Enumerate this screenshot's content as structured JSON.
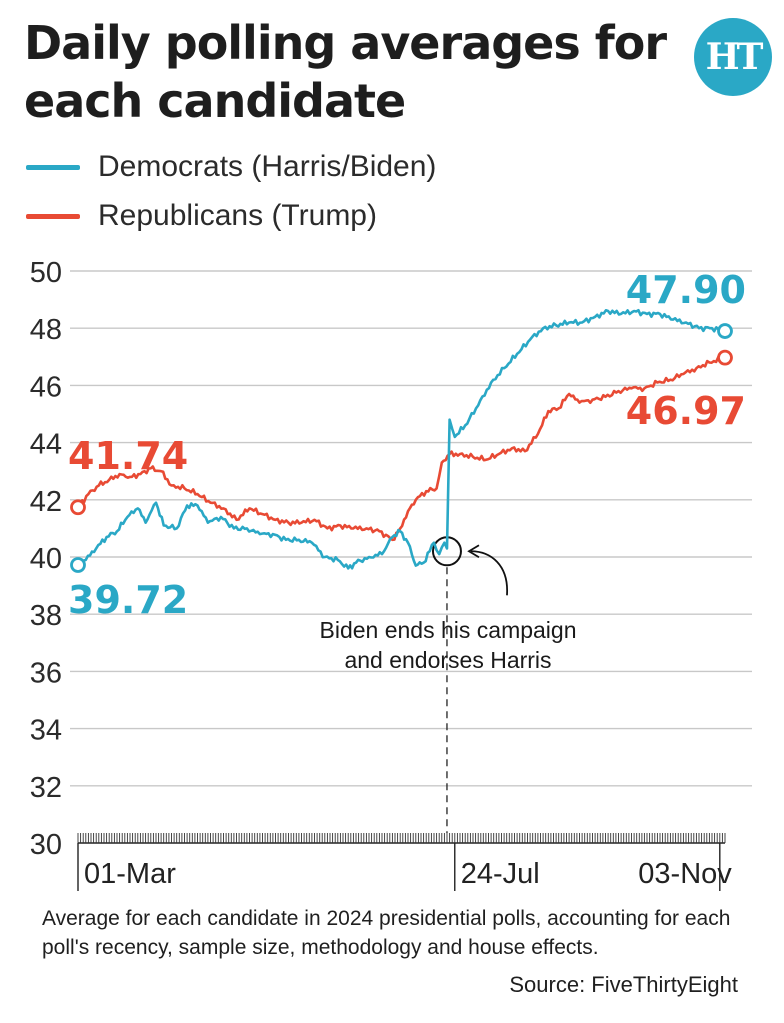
{
  "header": {
    "title": "Daily polling averages for each candidate",
    "logo_text": "HT",
    "logo_color": "#2aa8c6"
  },
  "footnote": "Average for each candidate in 2024 presidential polls, accounting for each poll's recency, sample size, methodology and house effects.",
  "source": "Source: FiveThirtyEight",
  "chart_data": {
    "type": "line",
    "title": "Daily polling averages for each candidate",
    "xlabel": "",
    "ylabel": "",
    "ylim": [
      30,
      50
    ],
    "yticks": [
      30,
      32,
      34,
      36,
      38,
      40,
      42,
      44,
      46,
      48,
      50
    ],
    "xlim": [
      "2024-03-01",
      "2024-11-05"
    ],
    "xtick_labels": [
      {
        "label": "01-Mar",
        "date": "2024-03-01"
      },
      {
        "label": "24-Jul",
        "date": "2024-07-24"
      },
      {
        "label": "03-Nov",
        "date": "2024-11-03"
      }
    ],
    "grid": "horizontal",
    "legend": "top-left",
    "series": [
      {
        "name": "Democrats (Harris/Biden)",
        "color": "#2aa8c6",
        "start_label": "39.72",
        "end_label": "47.90",
        "points": [
          [
            "2024-03-01",
            39.72
          ],
          [
            "2024-03-04",
            39.9
          ],
          [
            "2024-03-08",
            40.3
          ],
          [
            "2024-03-12",
            40.7
          ],
          [
            "2024-03-16",
            40.9
          ],
          [
            "2024-03-20",
            41.4
          ],
          [
            "2024-03-24",
            41.7
          ],
          [
            "2024-03-27",
            41.2
          ],
          [
            "2024-03-31",
            41.9
          ],
          [
            "2024-04-03",
            41.1
          ],
          [
            "2024-04-08",
            41.0
          ],
          [
            "2024-04-12",
            41.8
          ],
          [
            "2024-04-16",
            41.8
          ],
          [
            "2024-04-20",
            41.2
          ],
          [
            "2024-04-25",
            41.4
          ],
          [
            "2024-04-30",
            41.0
          ],
          [
            "2024-05-05",
            41.0
          ],
          [
            "2024-05-10",
            40.8
          ],
          [
            "2024-05-15",
            40.8
          ],
          [
            "2024-05-20",
            40.6
          ],
          [
            "2024-05-25",
            40.6
          ],
          [
            "2024-05-30",
            40.5
          ],
          [
            "2024-06-04",
            40.0
          ],
          [
            "2024-06-09",
            39.9
          ],
          [
            "2024-06-13",
            39.6
          ],
          [
            "2024-06-16",
            39.8
          ],
          [
            "2024-06-21",
            40.0
          ],
          [
            "2024-06-26",
            40.1
          ],
          [
            "2024-06-30",
            40.7
          ],
          [
            "2024-07-03",
            40.9
          ],
          [
            "2024-07-06",
            40.5
          ],
          [
            "2024-07-09",
            39.7
          ],
          [
            "2024-07-12",
            39.8
          ],
          [
            "2024-07-16",
            40.5
          ],
          [
            "2024-07-18",
            40.1
          ],
          [
            "2024-07-20",
            40.5
          ],
          [
            "2024-07-21",
            40.3
          ],
          [
            "2024-07-22",
            44.8
          ],
          [
            "2024-07-24",
            44.2
          ],
          [
            "2024-07-28",
            44.6
          ],
          [
            "2024-08-02",
            45.3
          ],
          [
            "2024-08-07",
            46.1
          ],
          [
            "2024-08-12",
            46.6
          ],
          [
            "2024-08-17",
            47.1
          ],
          [
            "2024-08-22",
            47.6
          ],
          [
            "2024-08-27",
            48.0
          ],
          [
            "2024-09-01",
            48.1
          ],
          [
            "2024-09-06",
            48.2
          ],
          [
            "2024-09-11",
            48.2
          ],
          [
            "2024-09-16",
            48.4
          ],
          [
            "2024-09-21",
            48.6
          ],
          [
            "2024-09-26",
            48.5
          ],
          [
            "2024-10-01",
            48.6
          ],
          [
            "2024-10-06",
            48.5
          ],
          [
            "2024-10-11",
            48.5
          ],
          [
            "2024-10-16",
            48.3
          ],
          [
            "2024-10-21",
            48.2
          ],
          [
            "2024-10-26",
            48.0
          ],
          [
            "2024-10-31",
            48.0
          ],
          [
            "2024-11-05",
            47.9
          ]
        ]
      },
      {
        "name": "Republicans (Trump)",
        "color": "#e84a34",
        "start_label": "41.74",
        "end_label": "46.97",
        "points": [
          [
            "2024-03-01",
            41.74
          ],
          [
            "2024-03-05",
            42.2
          ],
          [
            "2024-03-09",
            42.5
          ],
          [
            "2024-03-13",
            42.7
          ],
          [
            "2024-03-17",
            42.9
          ],
          [
            "2024-03-21",
            42.8
          ],
          [
            "2024-03-25",
            42.9
          ],
          [
            "2024-03-29",
            43.1
          ],
          [
            "2024-04-02",
            43.0
          ],
          [
            "2024-04-06",
            42.5
          ],
          [
            "2024-04-11",
            42.4
          ],
          [
            "2024-04-16",
            42.2
          ],
          [
            "2024-04-21",
            41.9
          ],
          [
            "2024-04-26",
            41.7
          ],
          [
            "2024-05-01",
            41.3
          ],
          [
            "2024-05-06",
            41.7
          ],
          [
            "2024-05-11",
            41.5
          ],
          [
            "2024-05-16",
            41.3
          ],
          [
            "2024-05-21",
            41.2
          ],
          [
            "2024-05-26",
            41.2
          ],
          [
            "2024-05-31",
            41.3
          ],
          [
            "2024-06-05",
            41.0
          ],
          [
            "2024-06-10",
            41.1
          ],
          [
            "2024-06-15",
            41.0
          ],
          [
            "2024-06-20",
            41.0
          ],
          [
            "2024-06-25",
            40.9
          ],
          [
            "2024-06-30",
            40.6
          ],
          [
            "2024-07-03",
            41.0
          ],
          [
            "2024-07-06",
            41.6
          ],
          [
            "2024-07-09",
            42.0
          ],
          [
            "2024-07-13",
            42.3
          ],
          [
            "2024-07-17",
            42.4
          ],
          [
            "2024-07-19",
            43.3
          ],
          [
            "2024-07-22",
            43.6
          ],
          [
            "2024-07-26",
            43.6
          ],
          [
            "2024-07-31",
            43.5
          ],
          [
            "2024-08-05",
            43.4
          ],
          [
            "2024-08-10",
            43.6
          ],
          [
            "2024-08-15",
            43.8
          ],
          [
            "2024-08-20",
            43.7
          ],
          [
            "2024-08-25",
            44.3
          ],
          [
            "2024-08-29",
            45.1
          ],
          [
            "2024-09-02",
            45.2
          ],
          [
            "2024-09-06",
            45.7
          ],
          [
            "2024-09-10",
            45.4
          ],
          [
            "2024-09-15",
            45.5
          ],
          [
            "2024-09-20",
            45.6
          ],
          [
            "2024-09-25",
            45.8
          ],
          [
            "2024-09-30",
            45.9
          ],
          [
            "2024-10-05",
            45.9
          ],
          [
            "2024-10-10",
            46.1
          ],
          [
            "2024-10-15",
            46.2
          ],
          [
            "2024-10-20",
            46.4
          ],
          [
            "2024-10-25",
            46.6
          ],
          [
            "2024-10-30",
            46.8
          ],
          [
            "2024-11-05",
            46.97
          ]
        ]
      }
    ],
    "annotations": [
      {
        "date": "2024-07-21",
        "y": 40.2,
        "text_lines": [
          "Biden ends his campaign",
          "and endorses Harris"
        ]
      }
    ]
  }
}
